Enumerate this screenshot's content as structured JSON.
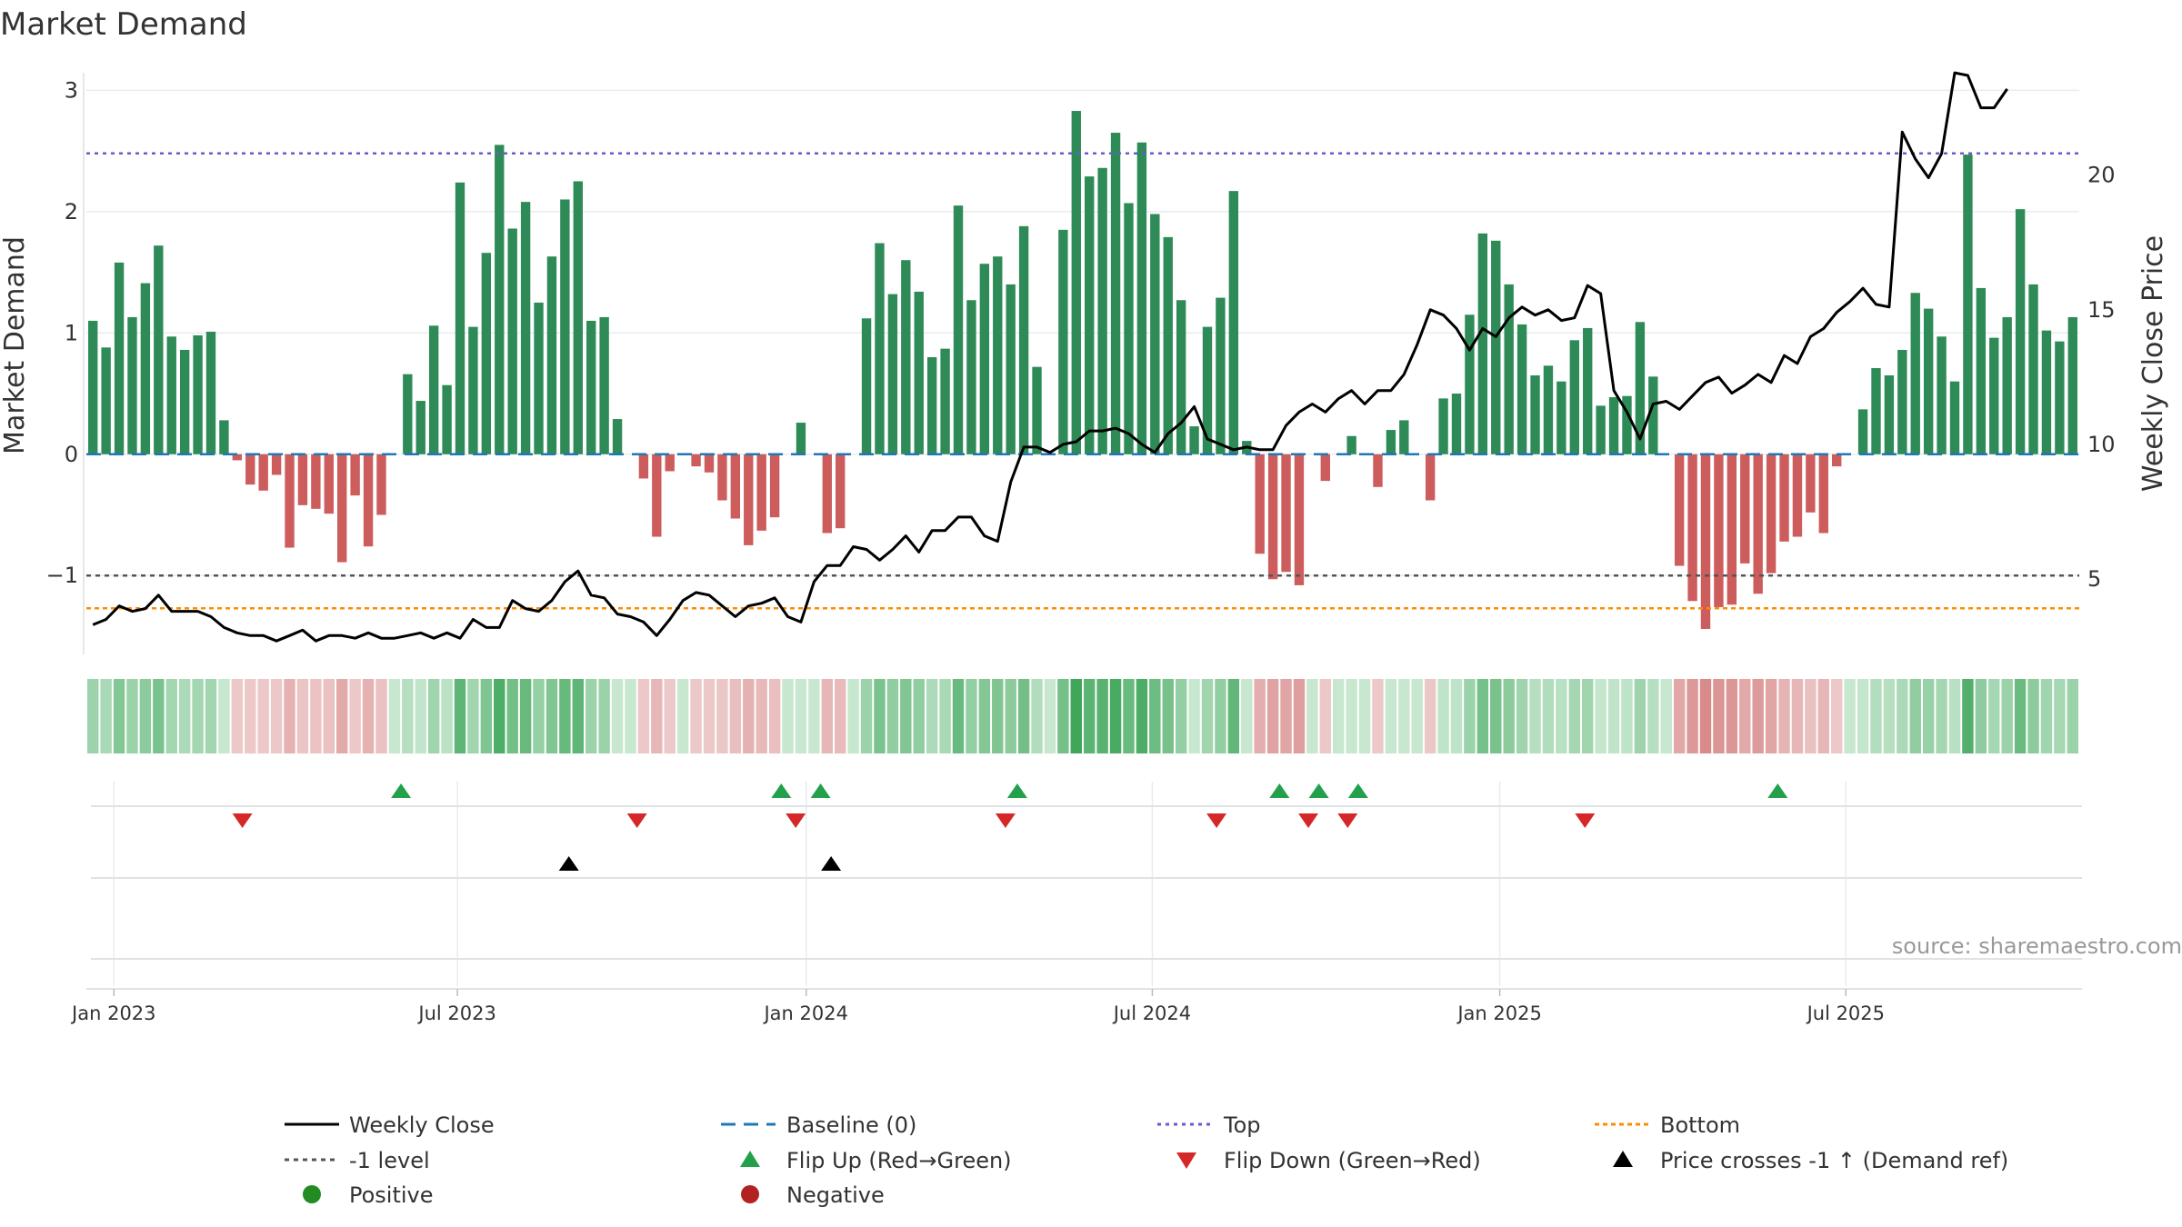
{
  "chart_data": {
    "type": "bar",
    "title": "Market Demand",
    "ylabel_left": "Market Demand",
    "ylabel_right": "Weekly Close Price",
    "source": "source: sharemaestro.com",
    "left_axis": {
      "ylim": [
        -1.65,
        3.1
      ],
      "ticks": [
        3,
        2,
        1,
        0,
        -1
      ],
      "tick_labels": [
        "3",
        "2",
        "1",
        "0",
        "−1"
      ]
    },
    "right_axis": {
      "ylim": [
        2.2,
        23.6
      ],
      "ticks": [
        20,
        15,
        10,
        5
      ],
      "tick_labels": [
        "20",
        "15",
        "10",
        "5"
      ]
    },
    "x_axis": {
      "start_week": 0,
      "weeks": 146,
      "tick_labels": [
        "Jan 2023",
        "Jul 2023",
        "Jan 2024",
        "Jul 2024",
        "Jan 2025",
        "Jul 2025"
      ],
      "tick_weeks": [
        1.6,
        27.8,
        54.4,
        80.8,
        107.3,
        133.7
      ]
    },
    "demand": [
      1.1,
      0.88,
      1.58,
      1.13,
      1.41,
      1.72,
      0.97,
      0.86,
      0.98,
      1.01,
      0.28,
      -0.05,
      -0.25,
      -0.3,
      -0.17,
      -0.77,
      -0.42,
      -0.45,
      -0.49,
      -0.89,
      -0.34,
      -0.76,
      -0.5,
      0.0,
      0.66,
      0.44,
      1.06,
      0.57,
      2.24,
      1.05,
      1.66,
      2.55,
      1.86,
      2.08,
      1.25,
      1.63,
      2.1,
      2.25,
      1.1,
      1.13,
      0.29,
      0.0,
      -0.2,
      -0.68,
      -0.14,
      0.0,
      -0.1,
      -0.15,
      -0.38,
      -0.53,
      -0.75,
      -0.63,
      -0.52,
      0.0,
      0.26,
      0.0,
      -0.65,
      -0.61,
      0.0,
      1.12,
      1.74,
      1.32,
      1.6,
      1.34,
      0.8,
      0.87,
      2.05,
      1.27,
      1.57,
      1.63,
      1.4,
      1.88,
      0.72,
      0.0,
      1.85,
      2.83,
      2.29,
      2.36,
      2.65,
      2.07,
      2.57,
      1.98,
      1.79,
      1.27,
      0.23,
      1.05,
      1.29,
      2.17,
      0.11,
      -0.82,
      -1.03,
      -0.97,
      -1.08,
      0.0,
      -0.22,
      0.0,
      0.15,
      0.0,
      -0.27,
      0.2,
      0.28,
      0.0,
      -0.38,
      0.46,
      0.5,
      1.15,
      1.82,
      1.76,
      1.4,
      1.07,
      0.65,
      0.73,
      0.6,
      0.94,
      1.04,
      0.4,
      0.47,
      0.48,
      1.09,
      0.64,
      0.0,
      -0.92,
      -1.21,
      -1.44,
      -1.26,
      -1.24,
      -0.9,
      -1.15,
      -0.98,
      -0.72,
      -0.68,
      -0.48,
      -0.65,
      -0.1,
      0.0,
      0.37,
      0.71,
      0.65,
      0.86,
      1.33,
      1.2,
      0.97,
      0.6,
      2.47,
      1.37,
      0.96,
      1.13,
      2.02,
      1.4,
      1.02,
      0.93,
      1.13
    ],
    "weekly_close": [
      3.3,
      3.5,
      4.0,
      3.8,
      3.9,
      4.4,
      3.8,
      3.8,
      3.8,
      3.6,
      3.2,
      3.0,
      2.9,
      2.9,
      2.7,
      2.9,
      3.1,
      2.7,
      2.9,
      2.9,
      2.8,
      3.0,
      2.8,
      2.8,
      2.9,
      3.0,
      2.8,
      3.0,
      2.8,
      3.5,
      3.2,
      3.2,
      4.2,
      3.9,
      3.8,
      4.2,
      4.9,
      5.3,
      4.4,
      4.3,
      3.7,
      3.6,
      3.4,
      2.9,
      3.5,
      4.2,
      4.5,
      4.4,
      4.0,
      3.6,
      4.0,
      4.1,
      4.3,
      3.6,
      3.4,
      4.9,
      5.5,
      5.5,
      6.2,
      6.1,
      5.7,
      6.1,
      6.6,
      6.0,
      6.8,
      6.8,
      7.3,
      7.3,
      6.6,
      6.4,
      8.6,
      9.9,
      9.9,
      9.7,
      10.0,
      10.1,
      10.5,
      10.5,
      10.6,
      10.4,
      10.0,
      9.7,
      10.4,
      10.8,
      11.4,
      10.2,
      10.0,
      9.8,
      9.9,
      9.8,
      9.8,
      10.7,
      11.2,
      11.5,
      11.2,
      11.7,
      12.0,
      11.5,
      12.0,
      12.0,
      12.6,
      13.7,
      15.0,
      14.8,
      14.3,
      13.5,
      14.3,
      14.0,
      14.7,
      15.1,
      14.8,
      15.0,
      14.6,
      14.7,
      15.9,
      15.6,
      12.0,
      11.2,
      10.2,
      11.5,
      11.6,
      11.3,
      11.8,
      12.3,
      12.5,
      11.9,
      12.2,
      12.6,
      12.3,
      13.3,
      13.0,
      14.0,
      14.3,
      14.9,
      15.3,
      15.8,
      15.2,
      15.1,
      21.6,
      20.6,
      19.9,
      20.8,
      23.8,
      23.7,
      22.5,
      22.5,
      23.2
    ]
  },
  "legend": {
    "weekly_close": "Weekly Close",
    "baseline": "Baseline (0)",
    "top": "Top",
    "bottom": "Bottom",
    "minus1": "-1 level",
    "flip_up": "Flip Up (Red→Green)",
    "flip_down": "Flip Down (Green→Red)",
    "price_cross": "Price crosses -1 ↑ (Demand ref)",
    "positive": "Positive",
    "negative": "Negative"
  },
  "reference_lines": {
    "top": 2.48,
    "bottom": -1.27,
    "minus1": -1.0,
    "baseline": 0.0
  },
  "events": {
    "flip_up_weeks": [
      23.5,
      52.5,
      55.5,
      70.5,
      90.5,
      93.5,
      96.5,
      128.5
    ],
    "flip_down_weeks": [
      11.4,
      41.5,
      53.6,
      69.6,
      85.7,
      92.7,
      95.7,
      113.8
    ],
    "price_cross_weeks": [
      36.3,
      56.3
    ]
  },
  "colors": {
    "positive_bar": "#2e8b57",
    "negative_bar": "#cd5c5c",
    "price_line": "#000000",
    "baseline": "#1f77b4",
    "top_line": "#6a5acd",
    "bottom_line": "#ff8c00",
    "minus1_line": "#555555",
    "flip_up": "#22a04a",
    "flip_down": "#d62728",
    "price_cross": "#000000",
    "positive_dot": "#228b22",
    "negative_dot": "#b22222"
  }
}
